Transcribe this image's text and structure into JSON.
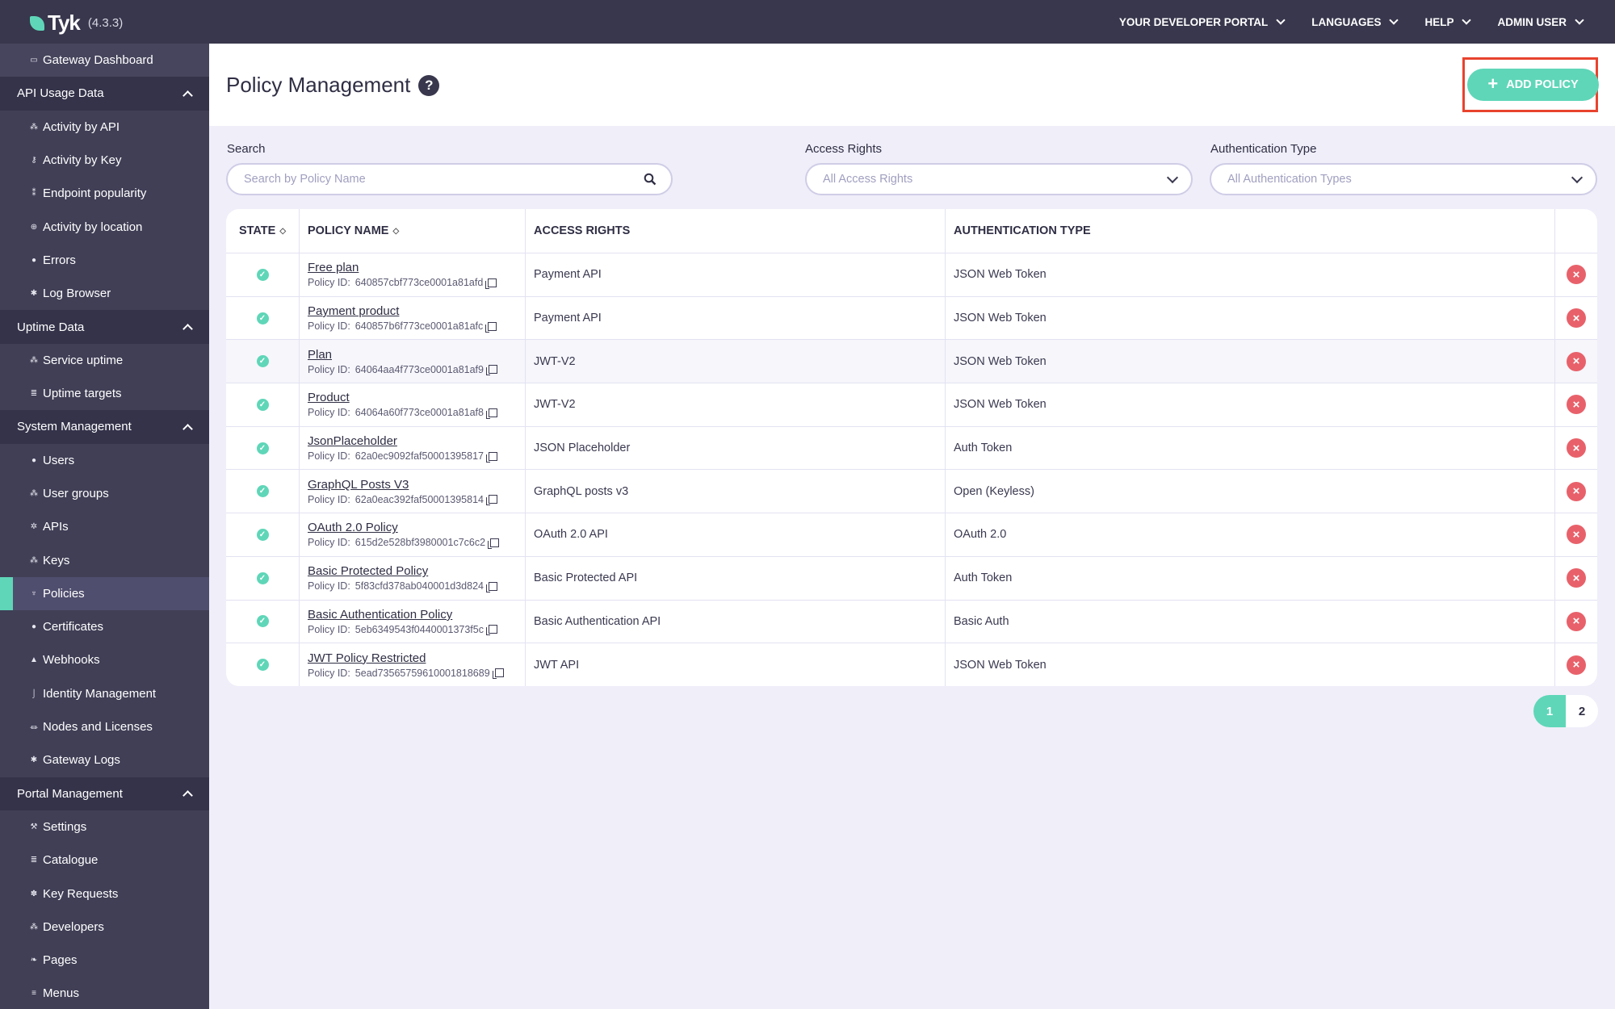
{
  "header": {
    "brand": "Tyk",
    "version": "(4.3.3)",
    "nav": [
      "YOUR DEVELOPER PORTAL",
      "LANGUAGES",
      "HELP",
      "ADMIN USER"
    ]
  },
  "sidebar": [
    {
      "type": "item",
      "label": "Gateway Dashboard",
      "icon": "monitor-icon",
      "glyph": "▭",
      "first": true
    },
    {
      "type": "section",
      "label": "API Usage Data"
    },
    {
      "type": "item",
      "label": "Activity by API",
      "icon": "chart-icon",
      "glyph": "⁂"
    },
    {
      "type": "item",
      "label": "Activity by Key",
      "icon": "key-icon",
      "glyph": "⚷"
    },
    {
      "type": "item",
      "label": "Endpoint popularity",
      "icon": "endpoint-icon",
      "glyph": "⁑"
    },
    {
      "type": "item",
      "label": "Activity by location",
      "icon": "globe-icon",
      "glyph": "⊕"
    },
    {
      "type": "item",
      "label": "Errors",
      "icon": "error-icon",
      "glyph": "●"
    },
    {
      "type": "item",
      "label": "Log Browser",
      "icon": "bug-icon",
      "glyph": "✱"
    },
    {
      "type": "section",
      "label": "Uptime Data"
    },
    {
      "type": "item",
      "label": "Service uptime",
      "icon": "uptime-icon",
      "glyph": "⁂"
    },
    {
      "type": "item",
      "label": "Uptime targets",
      "icon": "list-icon",
      "glyph": "≣"
    },
    {
      "type": "section",
      "label": "System Management"
    },
    {
      "type": "item",
      "label": "Users",
      "icon": "user-icon",
      "glyph": "●"
    },
    {
      "type": "item",
      "label": "User groups",
      "icon": "users-icon",
      "glyph": "⁂"
    },
    {
      "type": "item",
      "label": "APIs",
      "icon": "cogs-icon",
      "glyph": "✲"
    },
    {
      "type": "item",
      "label": "Keys",
      "icon": "sitemap-icon",
      "glyph": "⁂"
    },
    {
      "type": "item",
      "label": "Policies",
      "icon": "plug-icon",
      "glyph": "♆",
      "active": true
    },
    {
      "type": "item",
      "label": "Certificates",
      "icon": "certificate-icon",
      "glyph": "●"
    },
    {
      "type": "item",
      "label": "Webhooks",
      "icon": "bell-icon",
      "glyph": "▲"
    },
    {
      "type": "item",
      "label": "Identity Management",
      "icon": "identity-icon",
      "glyph": "⌡"
    },
    {
      "type": "item",
      "label": "Nodes and Licenses",
      "icon": "bank-icon",
      "glyph": "⏛"
    },
    {
      "type": "item",
      "label": "Gateway Logs",
      "icon": "bug-icon",
      "glyph": "✱"
    },
    {
      "type": "section",
      "label": "Portal Management"
    },
    {
      "type": "item",
      "label": "Settings",
      "icon": "wrench-icon",
      "glyph": "⚒"
    },
    {
      "type": "item",
      "label": "Catalogue",
      "icon": "list-icon",
      "glyph": "≣"
    },
    {
      "type": "item",
      "label": "Key Requests",
      "icon": "paw-icon",
      "glyph": "✽"
    },
    {
      "type": "item",
      "label": "Developers",
      "icon": "users-icon",
      "glyph": "⁂"
    },
    {
      "type": "item",
      "label": "Pages",
      "icon": "leaf-icon",
      "glyph": "❧"
    },
    {
      "type": "item",
      "label": "Menus",
      "icon": "menu-icon",
      "glyph": "≡"
    }
  ],
  "page": {
    "title": "Policy Management",
    "help": "?",
    "add_button": "ADD POLICY"
  },
  "filters": {
    "search_label": "Search",
    "search_placeholder": "Search by Policy Name",
    "search_value": "",
    "access_label": "Access Rights",
    "access_value": "All Access Rights",
    "auth_label": "Authentication Type",
    "auth_value": "All Authentication Types"
  },
  "table": {
    "columns": [
      "STATE",
      "POLICY NAME",
      "ACCESS RIGHTS",
      "AUTHENTICATION TYPE"
    ],
    "id_prefix": "Policy ID:",
    "rows": [
      {
        "state": "active",
        "name": "Free plan",
        "id": "640857cbf773ce0001a81afd",
        "access": "Payment API",
        "auth": "JSON Web Token"
      },
      {
        "state": "active",
        "name": "Payment product",
        "id": "640857b6f773ce0001a81afc",
        "access": "Payment API",
        "auth": "JSON Web Token"
      },
      {
        "state": "active",
        "name": "Plan",
        "id": "64064aa4f773ce0001a81af9",
        "access": "JWT-V2",
        "auth": "JSON Web Token"
      },
      {
        "state": "active",
        "name": "Product",
        "id": "64064a60f773ce0001a81af8",
        "access": "JWT-V2",
        "auth": "JSON Web Token"
      },
      {
        "state": "active",
        "name": "JsonPlaceholder",
        "id": "62a0ec9092faf50001395817",
        "access": "JSON Placeholder",
        "auth": "Auth Token"
      },
      {
        "state": "active",
        "name": "GraphQL Posts V3",
        "id": "62a0eac392faf50001395814",
        "access": "GraphQL posts v3",
        "auth": "Open (Keyless)"
      },
      {
        "state": "active",
        "name": "OAuth 2.0 Policy",
        "id": "615d2e528bf3980001c7c6c2",
        "access": "OAuth 2.0 API",
        "auth": "OAuth 2.0"
      },
      {
        "state": "active",
        "name": "Basic Protected Policy",
        "id": "5f83cfd378ab040001d3d824",
        "access": "Basic Protected API",
        "auth": "Auth Token"
      },
      {
        "state": "active",
        "name": "Basic Authentication Policy",
        "id": "5eb6349543f0440001373f5c",
        "access": "Basic Authentication API",
        "auth": "Basic Auth"
      },
      {
        "state": "active",
        "name": "JWT Policy Restricted",
        "id": "5ead73565759610001818689",
        "access": "JWT API",
        "auth": "JSON Web Token"
      }
    ]
  },
  "pagination": {
    "pages": [
      "1",
      "2"
    ],
    "current": "1"
  },
  "colors": {
    "accent": "#5fd6b8",
    "header": "#38374d",
    "sidebar": "#403f56",
    "delete": "#e8616a",
    "highlight": "#e8432e"
  }
}
